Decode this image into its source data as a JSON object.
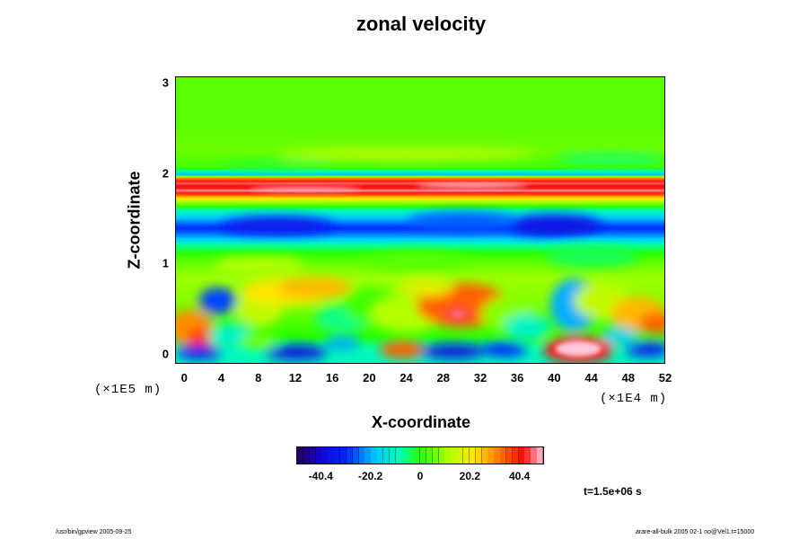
{
  "chart_data": {
    "type": "heatmap",
    "title": "zonal velocity",
    "xlabel": "X-coordinate",
    "ylabel": "Z-coordinate",
    "x_scale_note": "(×1E4 m)",
    "y_scale_note": "(×1E5 m)",
    "xlim": [
      -1,
      52
    ],
    "ylim": [
      -0.12,
      3.12
    ],
    "x_ticks": [
      "0",
      "4",
      "8",
      "12",
      "16",
      "20",
      "24",
      "28",
      "32",
      "36",
      "40",
      "44",
      "48",
      "52"
    ],
    "y_ticks": [
      "0",
      "1",
      "2",
      "3"
    ],
    "colorbar": {
      "range": [
        -50,
        50
      ],
      "tick_labels": [
        "-40.4",
        "-20.2",
        "0",
        "20.2",
        "40.4"
      ],
      "tick_values": [
        -40.4,
        -20.2,
        0,
        20.2,
        40.4
      ]
    },
    "time_label": "t=1.5e+06 s",
    "features": [
      {
        "name": "upper jet (red/white core)",
        "z_range": [
          1.78,
          1.98
        ],
        "value": 45
      },
      {
        "name": "westward band (blue)",
        "z_range": [
          1.3,
          1.5
        ],
        "value": -30
      },
      {
        "name": "strong eastward eddy (white)",
        "x": 42.5,
        "z": 0.05,
        "value": 55
      },
      {
        "name": "eastward eddy",
        "x": 30,
        "z": 0.55,
        "value": 38
      },
      {
        "name": "westward eddies near surface",
        "z_range": [
          -0.1,
          0.15
        ],
        "value": -38
      }
    ]
  },
  "footer": {
    "left": "/usr/bin/gpview 2005-09-25",
    "right": "arare-all-bulk 2005 02-1 no@Vel1.t=15000"
  }
}
